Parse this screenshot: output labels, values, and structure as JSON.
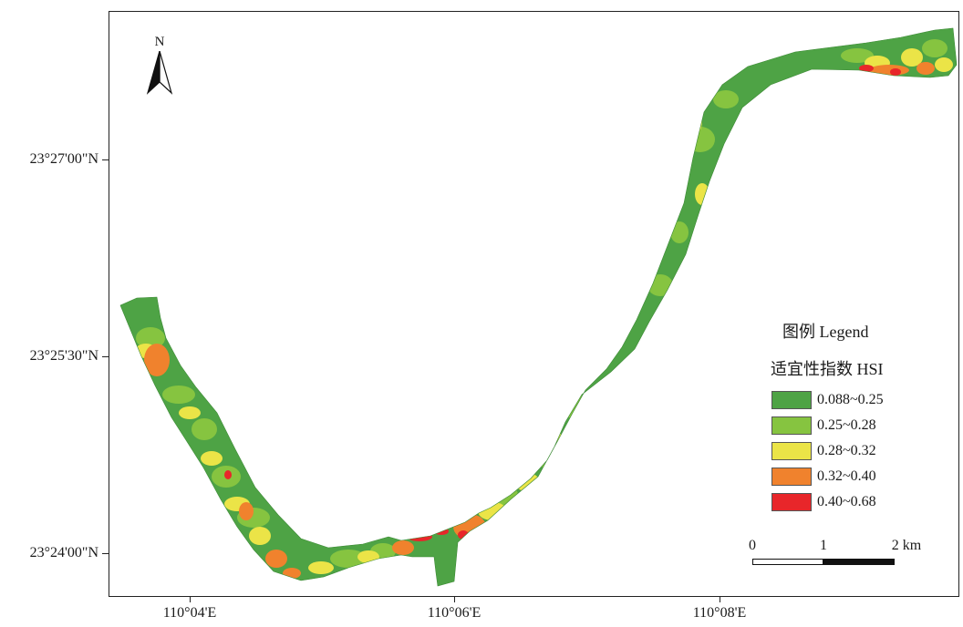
{
  "map": {
    "north_label": "N",
    "lat_ticks": [
      "23°27'00\"N",
      "23°25'30\"N",
      "23°24'00\"N"
    ],
    "lon_ticks": [
      "110°04'E",
      "110°06'E",
      "110°08'E"
    ]
  },
  "legend": {
    "title": "图例 Legend",
    "subtitle": "适宜性指数 HSI",
    "classes": [
      {
        "label": "0.088~0.25",
        "color": "#4ea345"
      },
      {
        "label": "0.25~0.28",
        "color": "#86c440"
      },
      {
        "label": "0.28~0.32",
        "color": "#ebe447"
      },
      {
        "label": "0.32~0.40",
        "color": "#f0822d"
      },
      {
        "label": "0.40~0.68",
        "color": "#e8262a"
      }
    ]
  },
  "scale_bar": {
    "labels": [
      "0",
      "1",
      "2 km"
    ]
  }
}
